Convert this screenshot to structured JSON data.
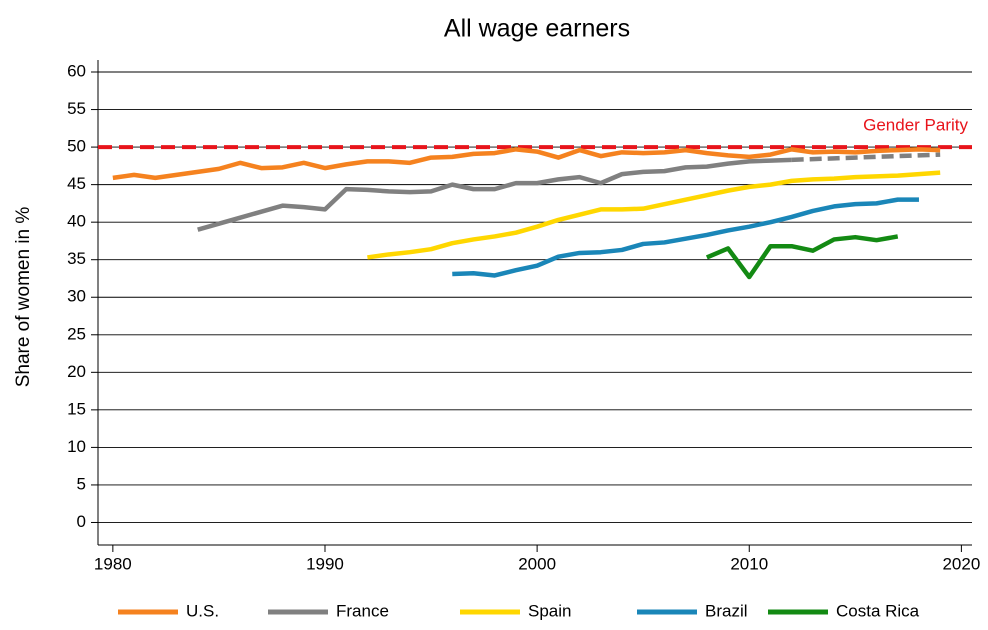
{
  "chart_data": {
    "type": "line",
    "title": "All wage earners",
    "y_label": "Share of women in %",
    "x": [
      1980,
      1981,
      1982,
      1983,
      1984,
      1985,
      1986,
      1987,
      1988,
      1989,
      1990,
      1991,
      1992,
      1993,
      1994,
      1995,
      1996,
      1997,
      1998,
      1999,
      2000,
      2001,
      2002,
      2003,
      2004,
      2005,
      2006,
      2007,
      2008,
      2009,
      2010,
      2011,
      2012,
      2013,
      2014,
      2015,
      2016,
      2017,
      2018,
      2019
    ],
    "series": [
      {
        "name": "U.S.",
        "color": "#f5821f",
        "values": [
          45.9,
          46.3,
          45.9,
          46.3,
          46.7,
          47.1,
          47.9,
          47.2,
          47.3,
          47.9,
          47.2,
          47.7,
          48.1,
          48.1,
          47.9,
          48.6,
          48.7,
          49.1,
          49.2,
          49.7,
          49.4,
          48.6,
          49.6,
          48.8,
          49.3,
          49.2,
          49.3,
          49.6,
          49.2,
          48.9,
          48.7,
          49.0,
          49.7,
          49.3,
          49.4,
          49.3,
          49.5,
          49.6,
          49.7,
          49.6
        ]
      },
      {
        "name": "France",
        "color": "#808080",
        "values": [
          null,
          null,
          null,
          null,
          39.0,
          39.8,
          40.6,
          41.4,
          42.2,
          42.0,
          41.7,
          44.4,
          44.3,
          44.1,
          44.0,
          44.1,
          45.0,
          44.4,
          44.4,
          45.2,
          45.2,
          45.7,
          46.0,
          45.2,
          46.4,
          46.7,
          46.8,
          47.3,
          47.4,
          47.8,
          48.1,
          48.2,
          48.3,
          null,
          null,
          null,
          null,
          null,
          null,
          null
        ],
        "projected_values": [
          null,
          null,
          null,
          null,
          null,
          null,
          null,
          null,
          null,
          null,
          null,
          null,
          null,
          null,
          null,
          null,
          null,
          null,
          null,
          null,
          null,
          null,
          null,
          null,
          null,
          null,
          null,
          null,
          null,
          null,
          null,
          null,
          48.3,
          48.4,
          48.5,
          48.6,
          48.7,
          48.8,
          48.9,
          49.0
        ]
      },
      {
        "name": "Spain",
        "color": "#ffd700",
        "values": [
          null,
          null,
          null,
          null,
          null,
          null,
          null,
          null,
          null,
          null,
          null,
          null,
          35.3,
          35.7,
          36.0,
          36.4,
          37.2,
          37.7,
          38.1,
          38.6,
          39.4,
          40.3,
          41.0,
          41.7,
          41.7,
          41.8,
          42.4,
          43.0,
          43.6,
          44.2,
          44.7,
          45.0,
          45.5,
          45.7,
          45.8,
          46.0,
          46.1,
          46.2,
          46.4,
          46.6
        ]
      },
      {
        "name": "Brazil",
        "color": "#1a86b8",
        "values": [
          null,
          null,
          null,
          null,
          null,
          null,
          null,
          null,
          null,
          null,
          null,
          null,
          null,
          null,
          null,
          null,
          33.1,
          33.2,
          32.9,
          33.6,
          34.2,
          35.4,
          35.9,
          36.0,
          36.3,
          37.1,
          37.3,
          37.8,
          38.3,
          38.9,
          39.4,
          40.0,
          40.7,
          41.5,
          42.1,
          42.4,
          42.5,
          43.0,
          43.0,
          null
        ]
      },
      {
        "name": "Costa Rica",
        "color": "#138a13",
        "values": [
          null,
          null,
          null,
          null,
          null,
          null,
          null,
          null,
          null,
          null,
          null,
          null,
          null,
          null,
          null,
          null,
          null,
          null,
          null,
          null,
          null,
          null,
          null,
          null,
          null,
          null,
          null,
          null,
          35.3,
          36.5,
          32.7,
          36.8,
          36.8,
          36.2,
          37.7,
          38.0,
          37.6,
          38.1,
          null,
          null
        ]
      }
    ],
    "reference_lines": [
      {
        "value": 50,
        "label": "Gender Parity",
        "color": "#e8141b"
      }
    ],
    "xlim": [
      1979.3,
      2020.5
    ],
    "xticks": [
      1980,
      1990,
      2000,
      2010,
      2020
    ],
    "ylim": [
      -3,
      61.6
    ],
    "yticks": [
      0,
      5,
      10,
      15,
      20,
      25,
      30,
      35,
      40,
      45,
      50,
      55,
      60
    ],
    "grid": true,
    "legend": "bottom"
  }
}
